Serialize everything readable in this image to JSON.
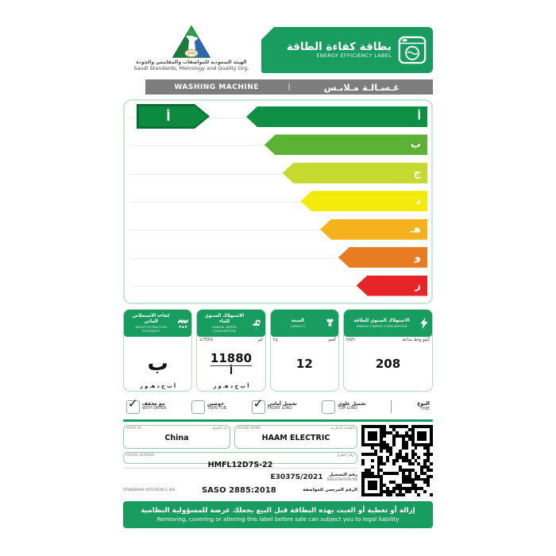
{
  "colors": {
    "brand_green": "#189c5f",
    "pointer_green": "#0c8a40",
    "gray_bar": "#7d7d7d"
  },
  "header": {
    "logo_text": "SASO",
    "org_ar": "الهيئة السعودية للمواصفات والمقاييس والجودة",
    "org_en": "Saudi Standards, Metrology and Quality Org.",
    "banner_ar": "بطاقة كفاءة الطاقة",
    "banner_en": "ENERGY EFFICIENCY LABEL"
  },
  "product_bar": {
    "en": "WASHING MACHINE",
    "sep": "|",
    "ar": "غـسـالـة مـلابـس"
  },
  "chart_data": {
    "type": "bar",
    "title": "Energy efficiency class scale",
    "categories": [
      "أ",
      "ب",
      "ج",
      "د",
      "هـ",
      "و",
      "ز"
    ],
    "values": [
      60,
      54,
      48,
      42,
      35.5,
      29.5,
      23.5
    ],
    "value_unit": "percent of scale width (arrow length)",
    "colors": [
      "#0e8f43",
      "#5cb234",
      "#c6d92f",
      "#f4ea0c",
      "#f5b21d",
      "#e87c22",
      "#e52528"
    ],
    "rated_class": "أ",
    "xlabel": "",
    "ylabel": "",
    "legend_position": "none",
    "grid": "light row separator lines"
  },
  "panels": {
    "extraction": {
      "title_ar": "كفاءة الاستخلاص المائي",
      "title_en": "WATER EXTRACTION EFFICIENCY",
      "value": "ب",
      "scale": "أ ب ج د هـ و ز"
    },
    "water": {
      "title_ar": "الاستهلاك السنوي للماء",
      "title_en": "ANNUAL WATER CONSUMPTION",
      "unit_en": "LITERS",
      "unit_ar": "لتر",
      "value": "11880",
      "rating": "أ",
      "scale": "أ ب ج د هـ و ز"
    },
    "capacity": {
      "title_ar": "السعة",
      "title_en": "CAPACITY",
      "unit_en": "kg",
      "unit_ar": "كجم",
      "value": "12"
    },
    "energy": {
      "title_ar": "الاستهلاك السنوي للطاقة",
      "title_en": "ANNUAL ENERGY CONSUMPTION",
      "unit_en": "kWh",
      "unit_ar": "كيلو واط ساعة",
      "value": "208"
    }
  },
  "type_section": {
    "label_ar": "النوع",
    "label_en": "TYPE",
    "options": [
      {
        "ar": "مع مجفف",
        "en": "WITH DRYER",
        "checked": true
      },
      {
        "ar": "حوضين",
        "en": "TWIN TUB",
        "checked": false
      },
      {
        "ar": "تحميل أمامي",
        "en": "FRONT LOAD",
        "checked": true
      },
      {
        "ar": "تحميل علوي",
        "en": "TOP LOAD",
        "checked": false
      }
    ]
  },
  "made_in": {
    "label_en": "MADE IN",
    "label_ar": "بلد الصنع",
    "value": "China"
  },
  "brand": {
    "label_en": "BRAND NAME",
    "label_ar": "العلامة التجارية",
    "value": "HAAM ELECTRIC"
  },
  "model": {
    "label_en": "MODEL NUMBER",
    "label_ar": "رقم الطراز",
    "value": "HMFL12D7S-22"
  },
  "registration": {
    "value": "E3037S/2021",
    "label_ar": "رقم التسجيل",
    "label_en": "REGISTRATION NO"
  },
  "standard": {
    "label_en": "STANDARD REFERENCE NO",
    "value": "SASO 2885:2018",
    "label_ar": "الرقم المرجعي للمواصفة"
  },
  "footer": {
    "ar": "إزالة أو تغطية أو العبث بهذه البطاقة قبل البيع يجعلك عرضة للمسؤولية النظامية",
    "en": "Removing, covering or altering this label before sale can subject you to legal liability"
  }
}
